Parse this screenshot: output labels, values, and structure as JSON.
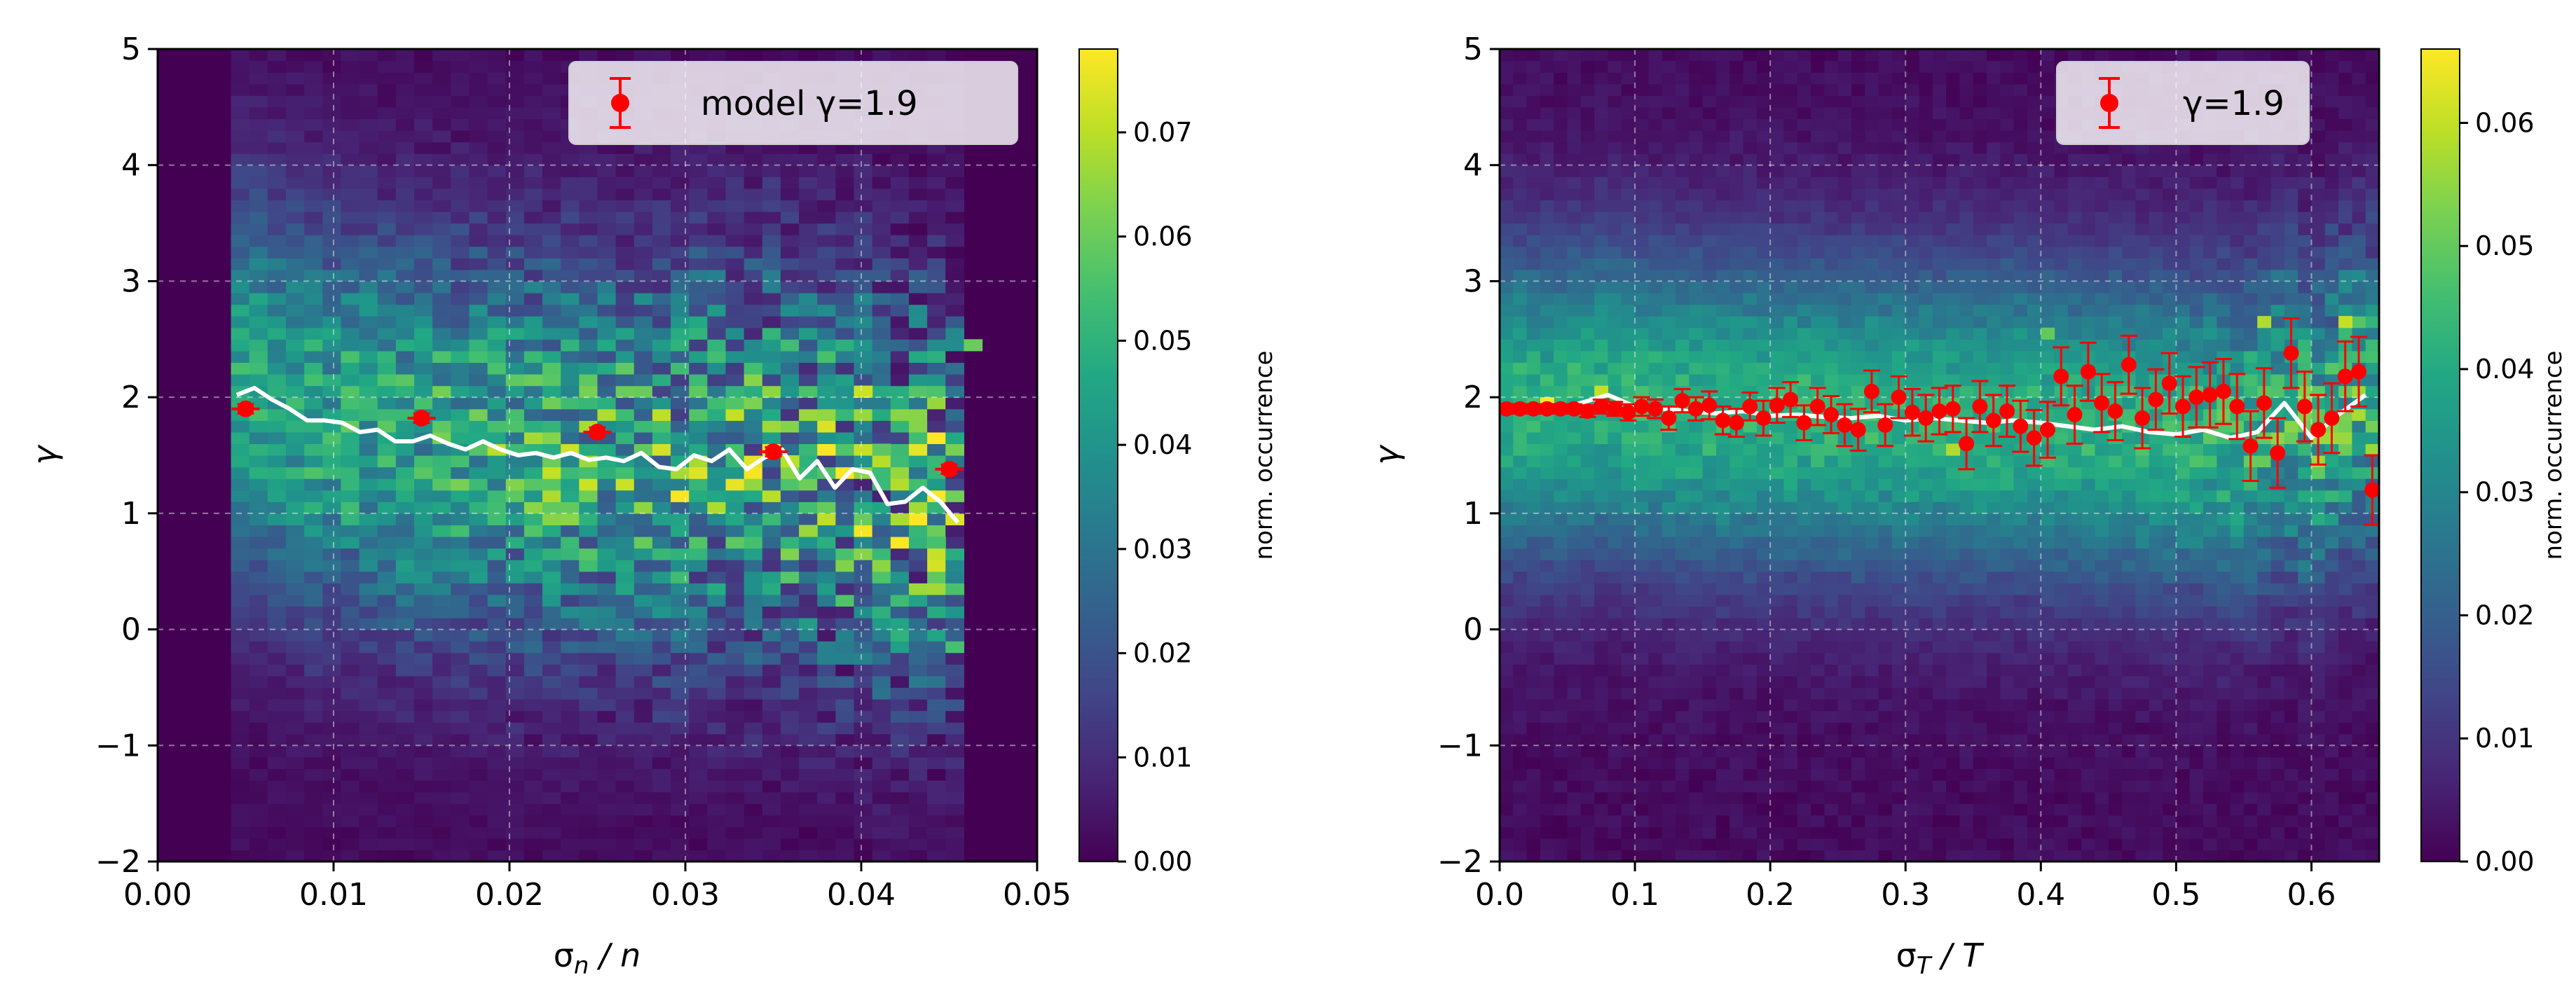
{
  "chart_data": [
    {
      "type": "heatmap",
      "panel": "left",
      "xlabel": "σn / n",
      "xlabel_base": "σ",
      "xlabel_sub": "n",
      "xlabel_tail": " / n",
      "ylabel": "γ",
      "xlim": [
        0.0,
        0.05
      ],
      "ylim": [
        -2,
        5
      ],
      "xticks": [
        0.0,
        0.01,
        0.02,
        0.03,
        0.04,
        0.05
      ],
      "xtick_labels": [
        "0.00",
        "0.01",
        "0.02",
        "0.03",
        "0.04",
        "0.05"
      ],
      "yticks": [
        -2,
        -1,
        0,
        1,
        2,
        3,
        4,
        5
      ],
      "ytick_labels": [
        "−2",
        "−1",
        "0",
        "1",
        "2",
        "3",
        "4",
        "5"
      ],
      "data_x_range": [
        0.004,
        0.046
      ],
      "colorbar": {
        "label": "norm. occurrence",
        "range": [
          0.0,
          0.078
        ],
        "ticks": [
          0.0,
          0.01,
          0.02,
          0.03,
          0.04,
          0.05,
          0.06,
          0.07
        ],
        "tick_labels": [
          "0.00",
          "0.01",
          "0.02",
          "0.03",
          "0.04",
          "0.05",
          "0.06",
          "0.07"
        ]
      },
      "legend": {
        "label": "model γ=1.9",
        "location": "top-right"
      },
      "median_line": {
        "x": [
          0.0045,
          0.0055,
          0.0065,
          0.0075,
          0.0085,
          0.0095,
          0.0105,
          0.0115,
          0.0125,
          0.0135,
          0.0145,
          0.0155,
          0.0165,
          0.0175,
          0.0185,
          0.0195,
          0.0205,
          0.0215,
          0.0225,
          0.0235,
          0.0245,
          0.0255,
          0.0265,
          0.0275,
          0.0285,
          0.0295,
          0.0305,
          0.0315,
          0.0325,
          0.0335,
          0.0345,
          0.0355,
          0.0365,
          0.0375,
          0.0385,
          0.0395,
          0.0405,
          0.0415,
          0.0425,
          0.0435,
          0.0445,
          0.0455
        ],
        "y": [
          2.02,
          2.08,
          1.98,
          1.9,
          1.8,
          1.8,
          1.78,
          1.7,
          1.72,
          1.62,
          1.62,
          1.67,
          1.6,
          1.55,
          1.62,
          1.55,
          1.5,
          1.52,
          1.48,
          1.52,
          1.46,
          1.48,
          1.45,
          1.52,
          1.4,
          1.38,
          1.5,
          1.45,
          1.55,
          1.38,
          1.48,
          1.55,
          1.3,
          1.45,
          1.22,
          1.38,
          1.35,
          1.08,
          1.1,
          1.22,
          1.1,
          0.92
        ]
      },
      "model_points": {
        "x": [
          0.005,
          0.015,
          0.025,
          0.035,
          0.045
        ],
        "y": [
          1.9,
          1.82,
          1.7,
          1.53,
          1.38
        ],
        "xerr": [
          0.0008,
          0.0008,
          0.0008,
          0.0008,
          0.0008
        ],
        "yerr": [
          0.04,
          0.04,
          0.04,
          0.04,
          0.04
        ]
      },
      "hotspots": [
        {
          "x": 0.04,
          "y": 2.05,
          "value": 0.072
        },
        {
          "x": 0.0355,
          "y": 1.47,
          "value": 0.07
        },
        {
          "x": 0.0425,
          "y": 0.93,
          "value": 0.068
        },
        {
          "x": 0.037,
          "y": 0.85,
          "value": 0.066
        },
        {
          "x": 0.0465,
          "y": 2.45,
          "value": 0.06
        },
        {
          "x": 0.041,
          "y": 1.5,
          "value": 0.058
        },
        {
          "x": 0.0445,
          "y": 0.8,
          "value": 0.055
        }
      ]
    },
    {
      "type": "heatmap",
      "panel": "right",
      "xlabel": "σT / T",
      "xlabel_base": "σ",
      "xlabel_sub": "T",
      "xlabel_tail": " / T",
      "ylabel": "γ",
      "xlim": [
        0.0,
        0.65
      ],
      "ylim": [
        -2,
        5
      ],
      "xticks": [
        0.0,
        0.1,
        0.2,
        0.3,
        0.4,
        0.5,
        0.6
      ],
      "xtick_labels": [
        "0.0",
        "0.1",
        "0.2",
        "0.3",
        "0.4",
        "0.5",
        "0.6"
      ],
      "yticks": [
        -2,
        -1,
        0,
        1,
        2,
        3,
        4,
        5
      ],
      "ytick_labels": [
        "−2",
        "−1",
        "0",
        "1",
        "2",
        "3",
        "4",
        "5"
      ],
      "data_x_range": [
        0.0,
        0.65
      ],
      "colorbar": {
        "label": "norm. occurrence",
        "range": [
          0.0,
          0.066
        ],
        "ticks": [
          0.0,
          0.01,
          0.02,
          0.03,
          0.04,
          0.05,
          0.06
        ],
        "tick_labels": [
          "0.00",
          "0.01",
          "0.02",
          "0.03",
          "0.04",
          "0.05",
          "0.06"
        ]
      },
      "legend": {
        "label": "γ=1.9",
        "location": "top-right"
      },
      "median_line": {
        "x": [
          0.0,
          0.02,
          0.04,
          0.06,
          0.08,
          0.1,
          0.12,
          0.14,
          0.16,
          0.18,
          0.2,
          0.22,
          0.24,
          0.26,
          0.28,
          0.3,
          0.32,
          0.34,
          0.36,
          0.38,
          0.4,
          0.42,
          0.44,
          0.46,
          0.48,
          0.5,
          0.52,
          0.54,
          0.56,
          0.58,
          0.6,
          0.62,
          0.64
        ],
        "y": [
          1.9,
          1.92,
          1.9,
          1.95,
          2.02,
          1.92,
          1.9,
          1.88,
          1.86,
          1.88,
          1.84,
          1.85,
          1.83,
          1.82,
          1.84,
          1.8,
          1.82,
          1.8,
          1.78,
          1.8,
          1.78,
          1.75,
          1.72,
          1.75,
          1.7,
          1.68,
          1.72,
          1.65,
          1.7,
          1.95,
          1.65,
          1.85,
          2.02
        ]
      },
      "model_points": {
        "x": [
          0.005,
          0.015,
          0.025,
          0.035,
          0.045,
          0.055,
          0.065,
          0.075,
          0.085,
          0.095,
          0.105,
          0.115,
          0.125,
          0.135,
          0.145,
          0.155,
          0.165,
          0.175,
          0.185,
          0.195,
          0.205,
          0.215,
          0.225,
          0.235,
          0.245,
          0.255,
          0.265,
          0.275,
          0.285,
          0.295,
          0.305,
          0.315,
          0.325,
          0.335,
          0.345,
          0.355,
          0.365,
          0.375,
          0.385,
          0.395,
          0.405,
          0.415,
          0.425,
          0.435,
          0.445,
          0.455,
          0.465,
          0.475,
          0.485,
          0.495,
          0.505,
          0.515,
          0.525,
          0.535,
          0.545,
          0.555,
          0.565,
          0.575,
          0.585,
          0.595,
          0.605,
          0.615,
          0.625,
          0.635,
          0.645
        ],
        "y": [
          1.9,
          1.9,
          1.9,
          1.9,
          1.9,
          1.9,
          1.88,
          1.92,
          1.9,
          1.87,
          1.92,
          1.9,
          1.82,
          1.97,
          1.9,
          1.93,
          1.8,
          1.78,
          1.92,
          1.82,
          1.93,
          1.98,
          1.78,
          1.92,
          1.85,
          1.76,
          1.72,
          2.05,
          1.76,
          2.0,
          1.87,
          1.82,
          1.88,
          1.9,
          1.6,
          1.92,
          1.8,
          1.88,
          1.75,
          1.65,
          1.72,
          2.18,
          1.85,
          2.22,
          1.95,
          1.88,
          2.28,
          1.82,
          1.98,
          2.12,
          1.92,
          2.0,
          2.02,
          2.05,
          1.92,
          1.58,
          1.95,
          1.52,
          2.38,
          1.92,
          1.72,
          1.82,
          2.18,
          2.22,
          1.2
        ],
        "yerr": [
          0.04,
          0.04,
          0.04,
          0.04,
          0.04,
          0.04,
          0.05,
          0.06,
          0.06,
          0.07,
          0.08,
          0.08,
          0.1,
          0.1,
          0.1,
          0.12,
          0.12,
          0.12,
          0.12,
          0.15,
          0.15,
          0.15,
          0.15,
          0.16,
          0.16,
          0.18,
          0.18,
          0.18,
          0.18,
          0.18,
          0.2,
          0.2,
          0.2,
          0.2,
          0.22,
          0.22,
          0.22,
          0.22,
          0.22,
          0.24,
          0.24,
          0.25,
          0.25,
          0.25,
          0.25,
          0.25,
          0.25,
          0.26,
          0.26,
          0.26,
          0.26,
          0.26,
          0.28,
          0.28,
          0.28,
          0.3,
          0.3,
          0.3,
          0.3,
          0.3,
          0.3,
          0.3,
          0.3,
          0.3,
          0.3
        ]
      },
      "hotspots": [
        {
          "x": 0.035,
          "y": 1.95,
          "value": 0.066
        },
        {
          "x": 0.075,
          "y": 2.05,
          "value": 0.06
        },
        {
          "x": 0.565,
          "y": 2.65,
          "value": 0.058
        },
        {
          "x": 0.625,
          "y": 2.65,
          "value": 0.06
        },
        {
          "x": 0.335,
          "y": 1.55,
          "value": 0.058
        },
        {
          "x": 0.405,
          "y": 2.5,
          "value": 0.05
        }
      ]
    }
  ]
}
